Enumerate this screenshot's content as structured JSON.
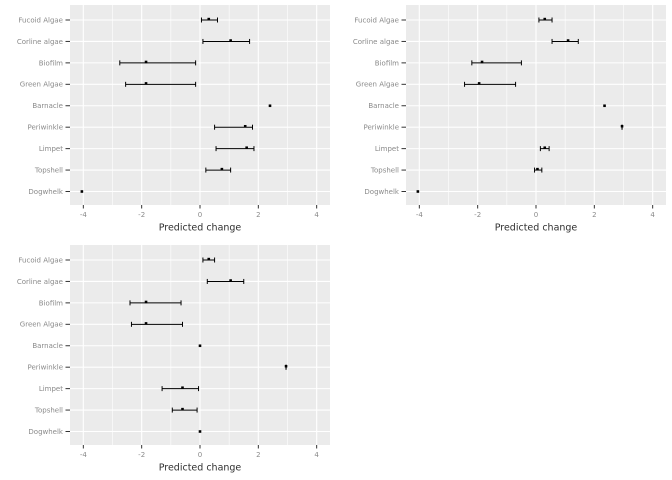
{
  "page": {
    "background": "#ffffff",
    "description": "Grid of three ggplot-style horizontal point-range (forest) plots of predicted change by taxon"
  },
  "style": {
    "panel_bg": "#ebebeb",
    "grid_color": "#ffffff",
    "data_color": "#000000",
    "axis_text_color": "#8a8a8a",
    "axis_title_color": "#2f2f2f",
    "tick_mark_color": "#333333"
  },
  "chart_data": [
    {
      "id": "top_left",
      "type": "pointrange",
      "title": "",
      "xlabel": "Predicted change",
      "ylabel": "",
      "x_ticks": [
        -4,
        -2,
        0,
        2,
        4
      ],
      "x_minor_ticks": [
        -3,
        -1,
        1,
        3
      ],
      "xlim": [
        -4.46,
        4.46
      ],
      "grid": true,
      "legend": "none",
      "categories": [
        "Fucoid Algae",
        "Corline algae",
        "Biofilm",
        "Green Algae",
        "Barnacle",
        "Periwinkle",
        "Limpet",
        "Topshell",
        "Dogwhelk"
      ],
      "points": [
        {
          "category": "Fucoid Algae",
          "estimate": 0.3,
          "lower": 0.05,
          "upper": 0.6
        },
        {
          "category": "Corline algae",
          "estimate": 1.05,
          "lower": 0.1,
          "upper": 1.7
        },
        {
          "category": "Biofilm",
          "estimate": -1.85,
          "lower": -2.75,
          "upper": -0.15
        },
        {
          "category": "Green Algae",
          "estimate": -1.85,
          "lower": -2.55,
          "upper": -0.15
        },
        {
          "category": "Barnacle",
          "estimate": 2.4,
          "lower": null,
          "upper": null
        },
        {
          "category": "Periwinkle",
          "estimate": 1.55,
          "lower": 0.5,
          "upper": 1.8
        },
        {
          "category": "Limpet",
          "estimate": 1.6,
          "lower": 0.55,
          "upper": 1.85
        },
        {
          "category": "Topshell",
          "estimate": 0.75,
          "lower": 0.2,
          "upper": 1.05
        },
        {
          "category": "Dogwhelk",
          "estimate": -4.05,
          "lower": null,
          "upper": null
        }
      ]
    },
    {
      "id": "top_right",
      "type": "pointrange",
      "title": "",
      "xlabel": "Predicted change",
      "ylabel": "",
      "x_ticks": [
        -4,
        -2,
        0,
        2,
        4
      ],
      "x_minor_ticks": [
        -3,
        -1,
        1,
        3
      ],
      "xlim": [
        -4.46,
        4.46
      ],
      "grid": true,
      "legend": "none",
      "categories": [
        "Fucoid Algae",
        "Corline algae",
        "Biofilm",
        "Green Algae",
        "Barnacle",
        "Periwinkle",
        "Limpet",
        "Topshell",
        "Dogwhelk"
      ],
      "points": [
        {
          "category": "Fucoid Algae",
          "estimate": 0.3,
          "lower": 0.1,
          "upper": 0.55
        },
        {
          "category": "Corline algae",
          "estimate": 1.1,
          "lower": 0.55,
          "upper": 1.45
        },
        {
          "category": "Biofilm",
          "estimate": -1.85,
          "lower": -2.2,
          "upper": -0.5
        },
        {
          "category": "Green Algae",
          "estimate": -1.95,
          "lower": -2.45,
          "upper": -0.7
        },
        {
          "category": "Barnacle",
          "estimate": 2.35,
          "lower": null,
          "upper": null
        },
        {
          "category": "Periwinkle",
          "estimate": 2.95,
          "lower": 2.95,
          "upper": 2.95
        },
        {
          "category": "Limpet",
          "estimate": 0.3,
          "lower": 0.15,
          "upper": 0.45
        },
        {
          "category": "Topshell",
          "estimate": 0.05,
          "lower": -0.05,
          "upper": 0.2
        },
        {
          "category": "Dogwhelk",
          "estimate": -4.05,
          "lower": null,
          "upper": null
        }
      ]
    },
    {
      "id": "bottom_left",
      "type": "pointrange",
      "title": "",
      "xlabel": "Predicted change",
      "ylabel": "",
      "x_ticks": [
        -4,
        -2,
        0,
        2,
        4
      ],
      "x_minor_ticks": [
        -3,
        -1,
        1,
        3
      ],
      "xlim": [
        -4.46,
        4.46
      ],
      "grid": true,
      "legend": "none",
      "categories": [
        "Fucoid Algae",
        "Corline algae",
        "Biofilm",
        "Green Algae",
        "Barnacle",
        "Periwinkle",
        "Limpet",
        "Topshell",
        "Dogwhelk"
      ],
      "points": [
        {
          "category": "Fucoid Algae",
          "estimate": 0.3,
          "lower": 0.1,
          "upper": 0.5
        },
        {
          "category": "Corline algae",
          "estimate": 1.05,
          "lower": 0.25,
          "upper": 1.5
        },
        {
          "category": "Biofilm",
          "estimate": -1.85,
          "lower": -2.4,
          "upper": -0.65
        },
        {
          "category": "Green Algae",
          "estimate": -1.85,
          "lower": -2.35,
          "upper": -0.6
        },
        {
          "category": "Barnacle",
          "estimate": 0.0,
          "lower": null,
          "upper": null
        },
        {
          "category": "Periwinkle",
          "estimate": 2.95,
          "lower": 2.95,
          "upper": 2.95
        },
        {
          "category": "Limpet",
          "estimate": -0.6,
          "lower": -1.3,
          "upper": -0.05
        },
        {
          "category": "Topshell",
          "estimate": -0.6,
          "lower": -0.95,
          "upper": -0.1
        },
        {
          "category": "Dogwhelk",
          "estimate": 0.0,
          "lower": null,
          "upper": null
        }
      ]
    }
  ]
}
